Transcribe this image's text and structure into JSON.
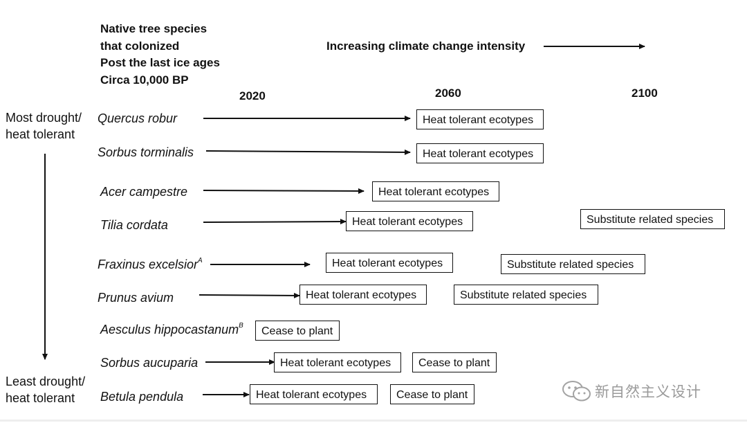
{
  "header": {
    "left_lines": [
      "Native tree species",
      "that colonized",
      "Post the last ice ages",
      "Circa 10,000 BP"
    ],
    "trend_label": "Increasing climate change intensity"
  },
  "years": [
    "2020",
    "2060",
    "2100"
  ],
  "axis": {
    "top_label": [
      "Most drought/",
      "heat tolerant"
    ],
    "bottom_label": [
      "Least drought/",
      "heat tolerant"
    ]
  },
  "species": [
    {
      "name": "Quercus robur",
      "sup": "",
      "actions": [
        "Heat tolerant ecotypes"
      ]
    },
    {
      "name": "Sorbus torminalis",
      "sup": "",
      "actions": [
        "Heat tolerant ecotypes"
      ]
    },
    {
      "name": "Acer campestre",
      "sup": "",
      "actions": [
        "Heat tolerant ecotypes"
      ]
    },
    {
      "name": "Tilia cordata",
      "sup": "",
      "actions": [
        "Heat tolerant ecotypes",
        "Substitute related species"
      ]
    },
    {
      "name": "Fraxinus excelsior",
      "sup": "A",
      "actions": [
        "Heat tolerant ecotypes",
        "Substitute related species"
      ]
    },
    {
      "name": "Prunus avium",
      "sup": "",
      "actions": [
        "Heat tolerant ecotypes",
        "Substitute related species"
      ]
    },
    {
      "name": "Aesculus hippocastanum",
      "sup": "B",
      "actions": [
        "Cease to plant"
      ]
    },
    {
      "name": "Sorbus aucuparia",
      "sup": "",
      "actions": [
        "Heat tolerant ecotypes",
        "Cease to plant"
      ]
    },
    {
      "name": "Betula pendula",
      "sup": "",
      "actions": [
        "Heat tolerant ecotypes",
        "Cease to plant"
      ]
    }
  ],
  "watermark": "新自然主义设计",
  "watermark_icon": "wechat-icon"
}
